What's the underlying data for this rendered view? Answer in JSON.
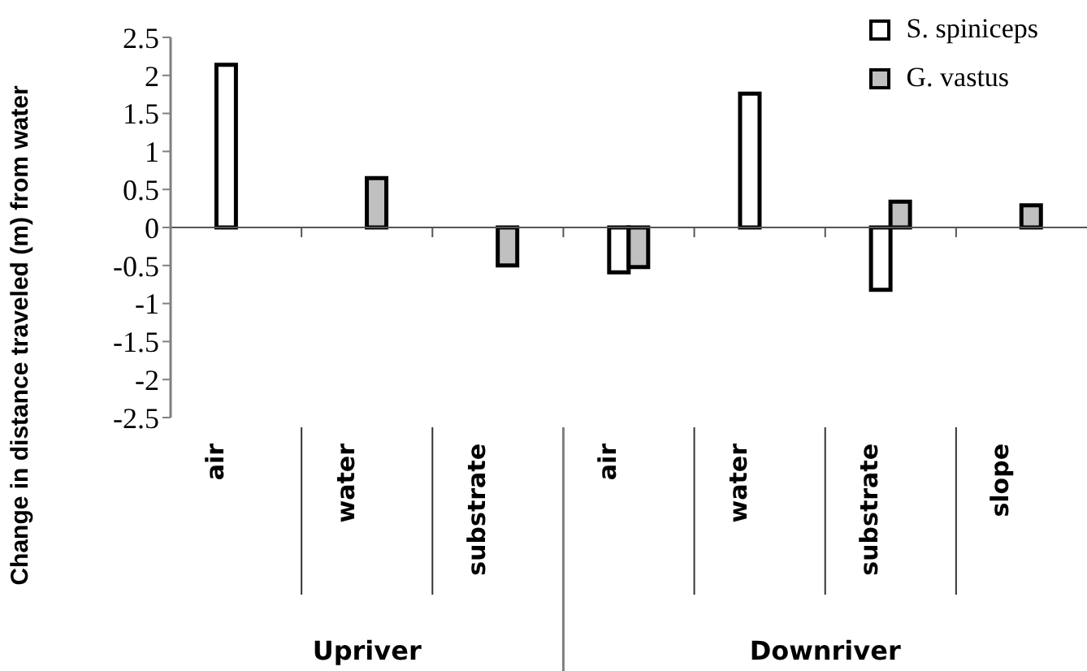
{
  "chart_data": {
    "type": "bar",
    "ylabel": "Change in distance traveled (m) from water",
    "categories": [
      "air",
      "water",
      "substrate",
      "air",
      "water",
      "substrate",
      "slope"
    ],
    "series": [
      {
        "name": "S. spiniceps",
        "color": "#ffffff",
        "values": [
          2.14,
          null,
          null,
          -0.59,
          1.76,
          -0.82,
          null
        ]
      },
      {
        "name": "G. vastus",
        "color": "#c0c0c0",
        "values": [
          null,
          0.65,
          -0.5,
          -0.52,
          null,
          0.34,
          0.29
        ]
      }
    ],
    "annotations": [
      "Upriver",
      "Downriver"
    ],
    "ylim": [
      -2.5,
      2.5
    ],
    "yticks": [
      -2.5,
      -2,
      -1.5,
      -1,
      -0.5,
      0,
      0.5,
      1,
      1.5,
      2,
      2.5
    ],
    "ref_lines": [
      {
        "axis": "y",
        "value": 0,
        "color": "#555555"
      }
    ],
    "grid": false,
    "legend": "top right"
  }
}
